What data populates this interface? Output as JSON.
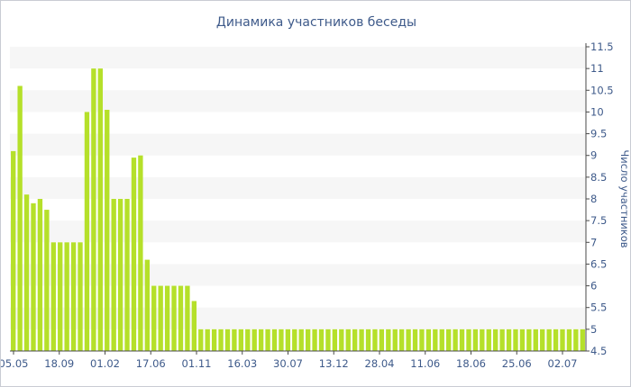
{
  "chart_data": {
    "type": "bar",
    "title": "Динамика участников беседы",
    "ylabel": "Число участников",
    "xlabel": "",
    "ylim": [
      4.5,
      11.5
    ],
    "yticks": [
      4.5,
      5,
      5.5,
      6,
      6.5,
      7,
      7.5,
      8,
      8.5,
      9,
      9.5,
      10,
      10.5,
      11,
      11.5
    ],
    "y_axis_side": "right",
    "grid": "horizontal alternating bands",
    "x_tick_labels": [
      "05.05",
      "18.09",
      "01.02",
      "17.06",
      "01.11",
      "16.03",
      "30.07",
      "13.12",
      "28.04",
      "11.06",
      "18.06",
      "25.06",
      "02.07"
    ],
    "bar_color": "#b5e02a",
    "values": [
      9.1,
      10.6,
      8.1,
      7.9,
      8.0,
      7.75,
      7.0,
      7.0,
      7.0,
      7.0,
      7.0,
      10.0,
      11.0,
      11.0,
      10.05,
      8.0,
      8.0,
      8.0,
      8.95,
      9.0,
      6.6,
      6.0,
      6.0,
      6.0,
      6.0,
      6.0,
      6.0,
      5.65,
      5.0,
      5.0,
      5.0,
      5.0,
      5.0,
      5.0,
      5.0,
      5.0,
      5.0,
      5.0,
      5.0,
      5.0,
      5.0,
      5.0,
      5.0,
      5.0,
      5.0,
      5.0,
      5.0,
      5.0,
      5.0,
      5.0,
      5.0,
      5.0,
      5.0,
      5.0,
      5.0,
      5.0,
      5.0,
      5.0,
      5.0,
      5.0,
      5.0,
      5.0,
      5.0,
      5.0,
      5.0,
      5.0,
      5.0,
      5.0,
      5.0,
      5.0,
      5.0,
      5.0,
      5.0,
      5.0,
      5.0,
      5.0,
      5.0,
      5.0,
      5.0,
      5.0,
      5.0,
      5.0,
      5.0,
      5.0,
      5.0,
      5.0
    ]
  }
}
